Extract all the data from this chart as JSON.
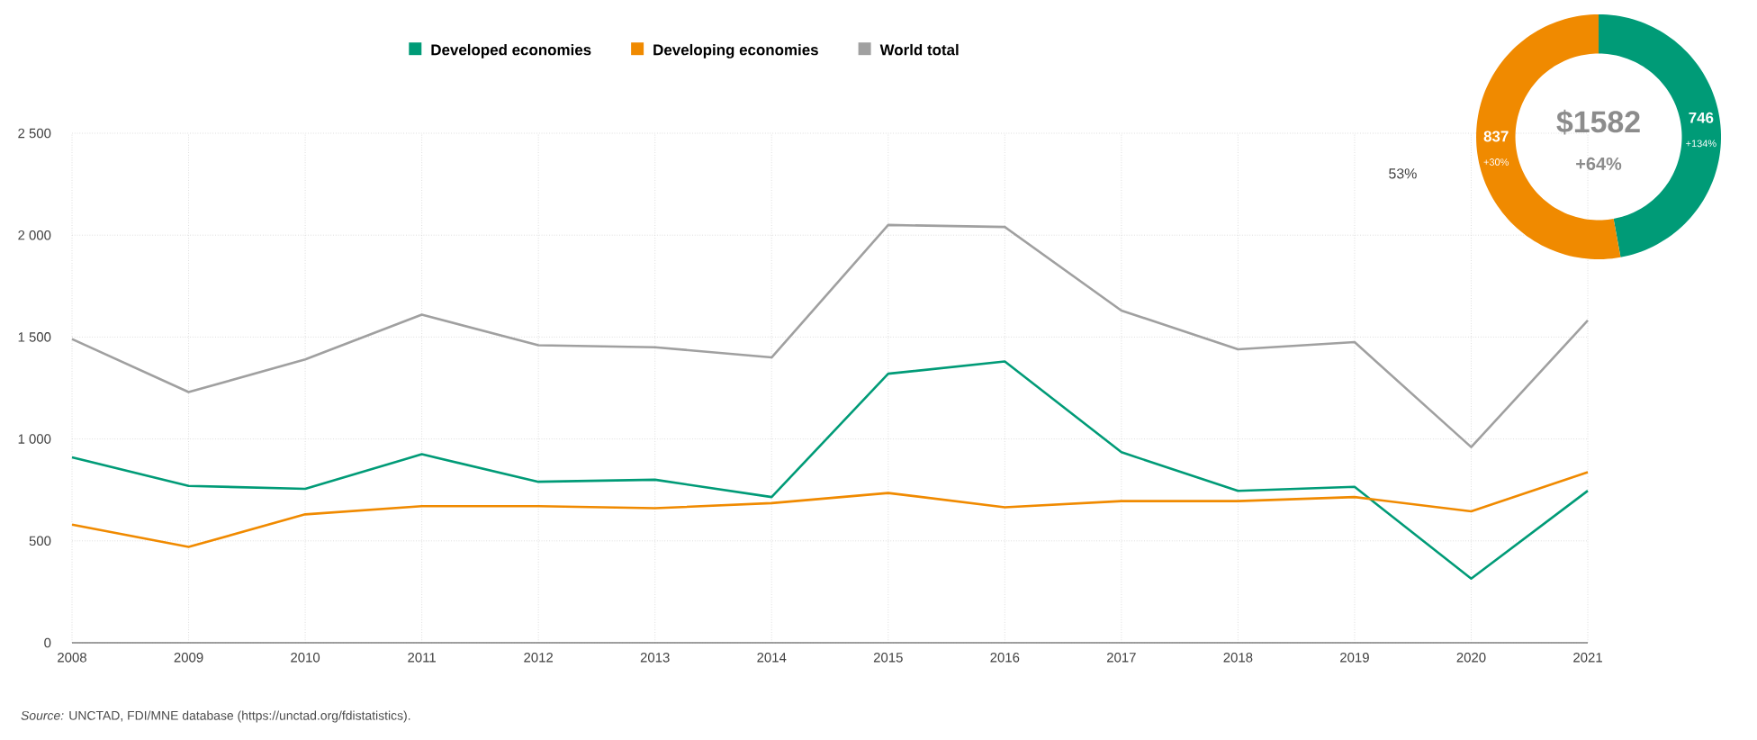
{
  "chart_data": [
    {
      "type": "line",
      "categories": [
        "2008",
        "2009",
        "2010",
        "2011",
        "2012",
        "2013",
        "2014",
        "2015",
        "2016",
        "2017",
        "2018",
        "2019",
        "2020",
        "2021"
      ],
      "series": [
        {
          "name": "Developed economies",
          "color": "#009b77",
          "values": [
            910,
            770,
            755,
            925,
            790,
            800,
            715,
            1320,
            1380,
            935,
            745,
            765,
            315,
            746
          ]
        },
        {
          "name": "Developing economies",
          "color": "#f08a00",
          "values": [
            580,
            470,
            630,
            670,
            670,
            660,
            685,
            735,
            665,
            695,
            695,
            715,
            645,
            837
          ]
        },
        {
          "name": "World total",
          "color": "#a0a0a0",
          "values": [
            1490,
            1230,
            1390,
            1610,
            1460,
            1450,
            1400,
            2050,
            2040,
            1630,
            1440,
            1475,
            960,
            1582
          ]
        }
      ],
      "ylim": [
        0,
        2500
      ],
      "yticks": [
        0,
        500,
        {
          "value": 1000,
          "label": "1 000"
        },
        {
          "value": 1500,
          "label": "1 500"
        },
        {
          "value": 2000,
          "label": "2 000"
        },
        {
          "value": 2500,
          "label": "2 500"
        }
      ],
      "grid": true,
      "legend": "top",
      "marker": "none",
      "line_style": "solid",
      "annotations": [
        "*Source:* UNCTAD, FDI/MNE database (https://unctad.org/fdistatistics)."
      ]
    },
    {
      "type": "donut",
      "categories": [
        null,
        null
      ],
      "values": [
        746,
        837
      ],
      "colors": [
        "#009b77",
        "#f08a00"
      ],
      "data_labels": true,
      "annotations": [
        "$1582",
        "+64%",
        "+134%",
        "+30%",
        "53%"
      ]
    }
  ]
}
